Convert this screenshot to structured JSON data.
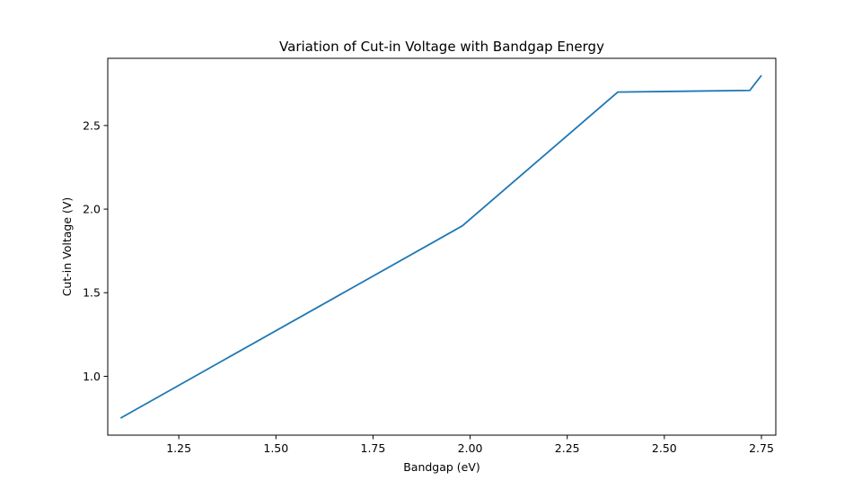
{
  "chart_data": {
    "type": "line",
    "title": "Variation of Cut-in Voltage with Bandgap Energy",
    "xlabel": "Bandgap (eV)",
    "ylabel": "Cut-in Voltage (V)",
    "xlim": [
      1.067,
      2.787
    ],
    "ylim": [
      0.648,
      2.902
    ],
    "xticks": [
      1.25,
      1.5,
      1.75,
      2.0,
      2.25,
      2.5,
      2.75
    ],
    "xtick_labels": [
      "1.25",
      "1.50",
      "1.75",
      "2.00",
      "2.25",
      "2.50",
      "2.75"
    ],
    "yticks": [
      1.0,
      1.5,
      2.0,
      2.5
    ],
    "ytick_labels": [
      "1.0",
      "1.5",
      "2.0",
      "2.5"
    ],
    "grid": false,
    "series": [
      {
        "color": "#1f77b4",
        "x": [
          1.1,
          1.98,
          2.38,
          2.72,
          2.75
        ],
        "y": [
          0.75,
          1.9,
          2.7,
          2.71,
          2.8
        ]
      }
    ]
  }
}
